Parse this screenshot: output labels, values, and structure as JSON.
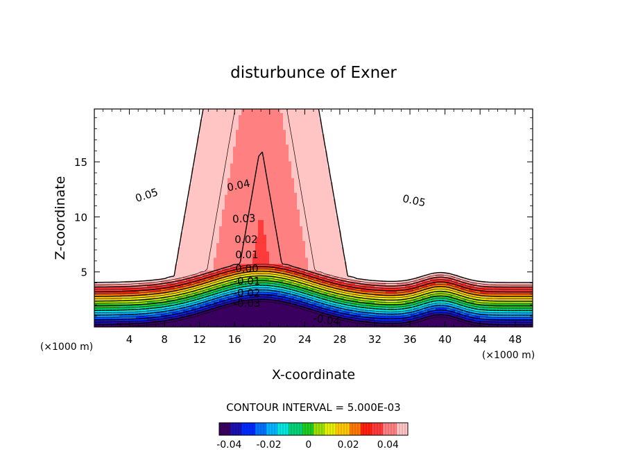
{
  "chart_data": {
    "type": "contour",
    "title": "disturbunce of Exner",
    "xlabel": "X-coordinate",
    "ylabel": "Z-coordinate",
    "x_unit": "(×1000 m)",
    "x_ticks": [
      4,
      8,
      12,
      16,
      20,
      24,
      28,
      32,
      36,
      40,
      44,
      48
    ],
    "y_ticks": [
      5,
      10,
      15
    ],
    "xlim": [
      0,
      50
    ],
    "ylim": [
      0,
      19.8
    ],
    "contour_interval_text": "CONTOUR INTERVAL = 5.000E-03",
    "contour_interval": 0.005,
    "value_range": [
      -0.045,
      0.05
    ],
    "contour_labels": [
      "0.05",
      "0.04",
      "0.03",
      "0.02",
      "0.01",
      "0.00",
      "-0.01",
      "-0.02",
      "-0.03",
      "-0.04",
      "0.05"
    ],
    "colorbar": {
      "ticks": [
        -0.04,
        -0.02,
        0,
        0.02,
        0.04
      ],
      "tick_labels": [
        "-0.04",
        "-0.02",
        "0",
        "0.02",
        "0.04"
      ]
    },
    "palette": [
      "#3a0060",
      "#1c10b0",
      "#0028ff",
      "#0070ff",
      "#00b4ff",
      "#00e6e0",
      "#00d278",
      "#20cc20",
      "#9ae000",
      "#e6f000",
      "#ffc800",
      "#ff7800",
      "#ff2010",
      "#ff3a3a",
      "#ff8080",
      "#ffc4c4",
      "#ffffff"
    ]
  }
}
